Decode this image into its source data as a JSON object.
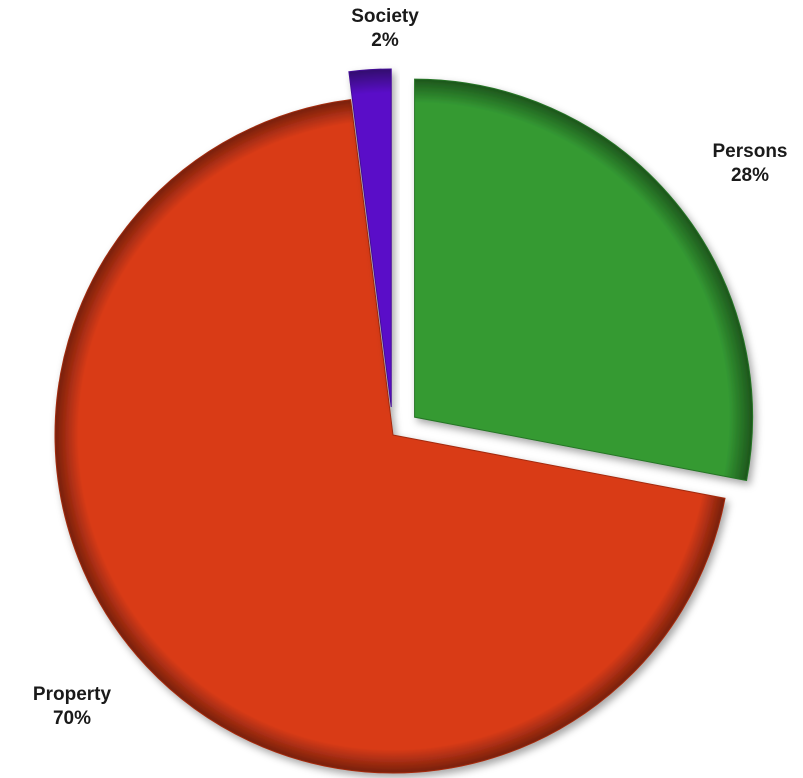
{
  "chart_data": {
    "type": "pie",
    "title": "",
    "slices": [
      {
        "label": "Persons",
        "percent_label": "28%",
        "value": 28,
        "color": "#349a33",
        "exploded": true
      },
      {
        "label": "Property",
        "percent_label": "70%",
        "value": 70,
        "color": "#d93b17",
        "exploded": false
      },
      {
        "label": "Society",
        "percent_label": "2%",
        "value": 2,
        "color": "#5a0fc8",
        "exploded": true
      }
    ],
    "start_angle": "12 o'clock",
    "direction": "clockwise",
    "legend": "none",
    "labels_outside": true
  }
}
